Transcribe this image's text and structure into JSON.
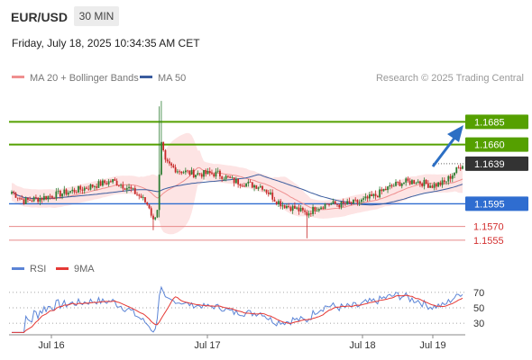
{
  "header": {
    "symbol": "EUR/USD",
    "timeframe": "30 MIN",
    "datetime": "Friday, July 18, 2025 10:34:35 AM CET"
  },
  "legend": {
    "ma20_label": "MA 20 + Bollinger Bands",
    "ma50_label": "MA 50",
    "credit": "Research © 2025 Trading Central"
  },
  "rsi_legend": {
    "rsi_label": "RSI",
    "ma_label": "9MA"
  },
  "colors": {
    "candle_up": "#2e7d32",
    "candle_down": "#c62828",
    "bollinger_fill": "#fde4e4",
    "ma20": "#ef8f8f",
    "ma50": "#3a5c9e",
    "resistance": "#55a000",
    "pivot": "#2f6dd0",
    "support": "#e88a8a",
    "current": "#333333",
    "arrow": "#2c6fc4",
    "rsi_line": "#5b84d6",
    "rsi_ma": "#e53935"
  },
  "chart_data": [
    {
      "type": "candlestick",
      "x_labels": [
        "Jul 16",
        "Jul 17",
        "Jul 18",
        "Jul 19"
      ],
      "ylim": [
        1.154,
        1.172
      ],
      "series_ohlc": [],
      "levels": [
        {
          "label": "1.1685",
          "value": 1.1685,
          "kind": "resistance"
        },
        {
          "label": "1.1660",
          "value": 1.166,
          "kind": "resistance"
        },
        {
          "label": "1.1639",
          "value": 1.1639,
          "kind": "current"
        },
        {
          "label": "1.1595",
          "value": 1.1595,
          "kind": "pivot"
        },
        {
          "label": "1.1570",
          "value": 1.157,
          "kind": "support"
        },
        {
          "label": "1.1555",
          "value": 1.1555,
          "kind": "support"
        }
      ]
    },
    {
      "type": "line",
      "name": "RSI",
      "y_ticks": [
        "70",
        "50",
        "30"
      ],
      "ylim": [
        15,
        85
      ]
    }
  ]
}
